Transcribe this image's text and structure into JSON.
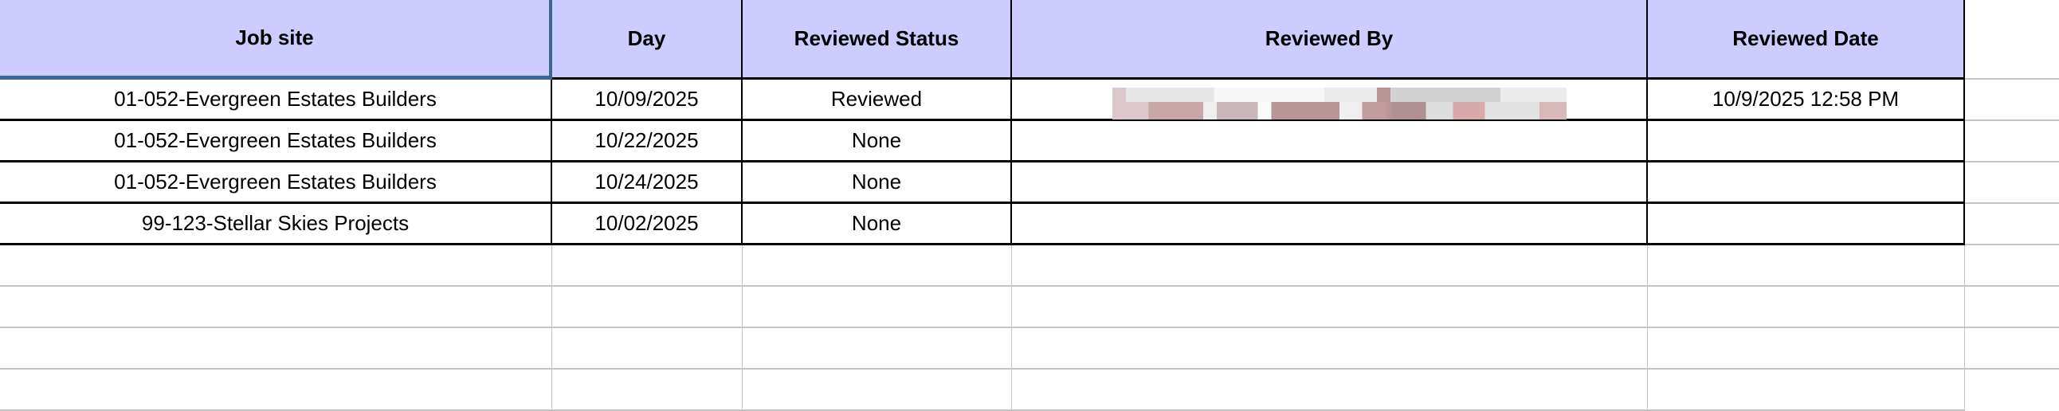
{
  "columns": [
    "Job site",
    "Day",
    "Reviewed Status",
    "Reviewed By",
    "Reviewed Date"
  ],
  "rows": [
    {
      "job_site": "01-052-Evergreen Estates Builders",
      "day": "10/09/2025",
      "status": "Reviewed",
      "reviewed_by_redacted": true,
      "reviewed_date": "10/9/2025 12:58 PM"
    },
    {
      "job_site": "01-052-Evergreen Estates Builders",
      "day": "10/22/2025",
      "status": "None",
      "reviewed_date": ""
    },
    {
      "job_site": "01-052-Evergreen Estates Builders",
      "day": "10/24/2025",
      "status": "None",
      "reviewed_date": ""
    },
    {
      "job_site": "99-123-Stellar Skies Projects",
      "day": "10/02/2025",
      "status": "None",
      "reviewed_date": ""
    }
  ],
  "colors": {
    "header_bg": "#ccccff",
    "selection_border": "#3a6690",
    "gridline": "#c4c4c4"
  }
}
